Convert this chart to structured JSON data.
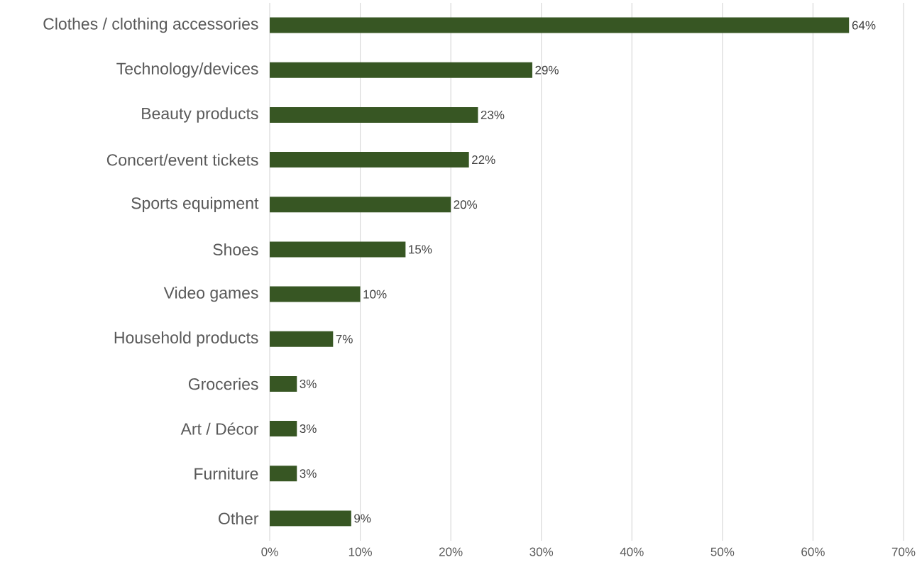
{
  "chart_data": {
    "type": "bar",
    "orientation": "horizontal",
    "color": "#375623",
    "grid": "x",
    "categories": [
      "Clothes / clothing accessories",
      "Technology/devices",
      "Beauty products",
      "Concert/event tickets",
      "Sports equipment",
      "Shoes",
      "Video games",
      "Household products",
      "Groceries",
      "Art / Décor",
      "Furniture",
      "Other"
    ],
    "values": [
      64,
      29,
      23,
      22,
      20,
      15,
      10,
      7,
      3,
      3,
      3,
      9
    ],
    "value_labels": [
      "64%",
      "29%",
      "23%",
      "22%",
      "20%",
      "15%",
      "10%",
      "7%",
      "3%",
      "3%",
      "3%",
      "9%"
    ],
    "xlim": [
      0,
      70
    ],
    "xticks": [
      {
        "value": 0,
        "label": "0%"
      },
      {
        "value": 10,
        "label": "10%"
      },
      {
        "value": 20,
        "label": "20%"
      },
      {
        "value": 30,
        "label": "30%"
      },
      {
        "value": 40,
        "label": "40%"
      },
      {
        "value": 50,
        "label": "50%"
      },
      {
        "value": 60,
        "label": "60%"
      },
      {
        "value": 70,
        "label": "70%"
      }
    ]
  }
}
